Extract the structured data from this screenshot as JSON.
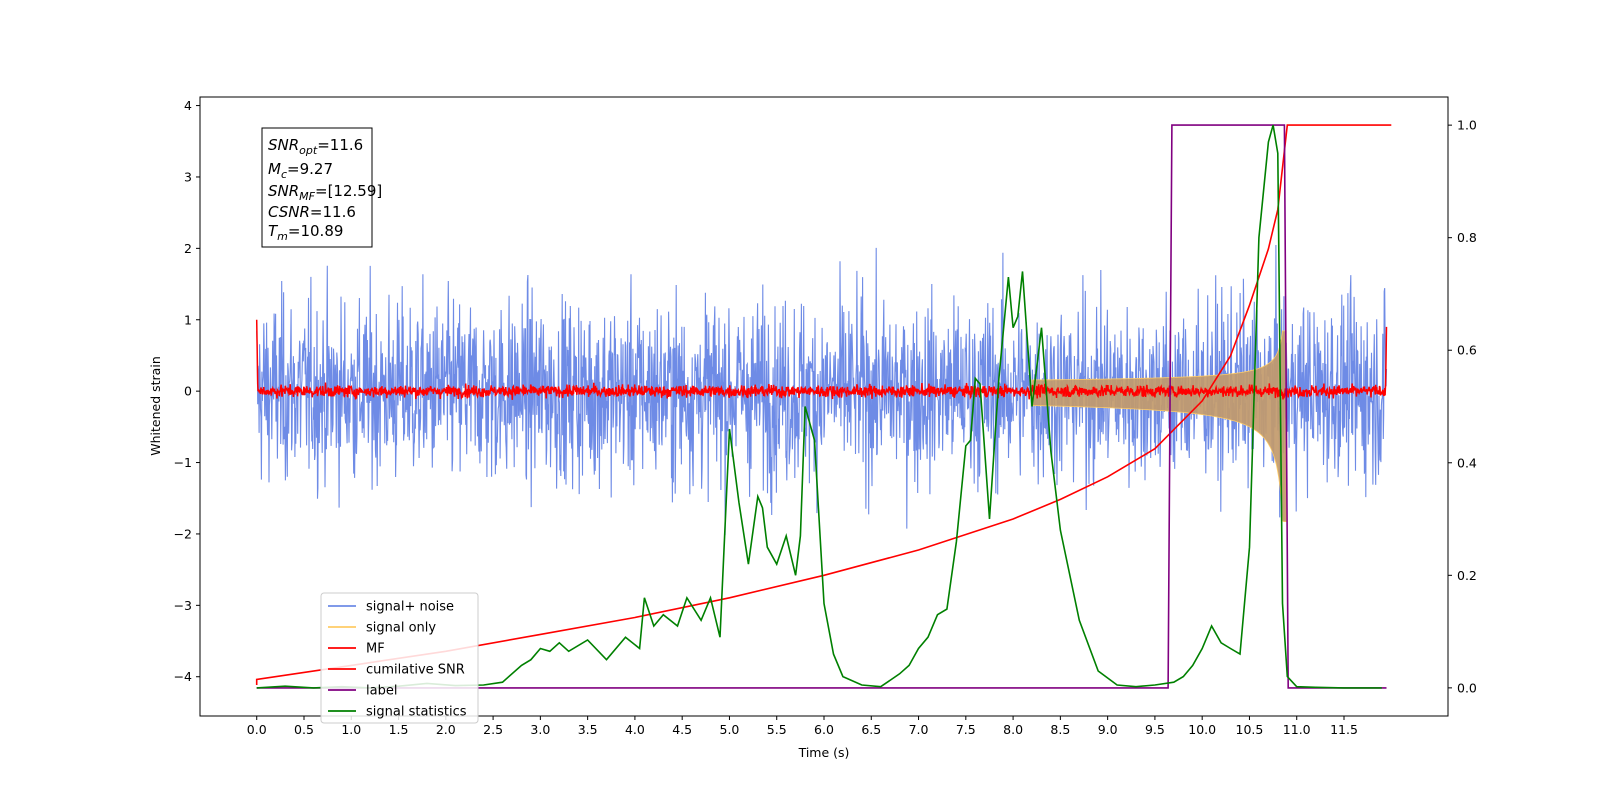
{
  "chart_data": {
    "type": "line",
    "xlabel": "Time (s)",
    "ylabel": "Whitened strain",
    "xlim": [
      -0.6,
      12.6
    ],
    "ylim": [
      -4.55,
      4.12
    ],
    "y2lim": [
      -0.05,
      1.05
    ],
    "x_ticks": [
      "0.0",
      "0.5",
      "1.0",
      "1.5",
      "2.0",
      "2.5",
      "3.0",
      "3.5",
      "4.0",
      "4.5",
      "5.0",
      "5.5",
      "6.0",
      "6.5",
      "7.0",
      "7.5",
      "8.0",
      "8.5",
      "9.0",
      "9.5",
      "10.0",
      "10.5",
      "11.0",
      "11.5"
    ],
    "y_ticks": [
      "4",
      "3",
      "2",
      "1",
      "0",
      "−1",
      "−2",
      "−3",
      "−4"
    ],
    "y2_ticks": [
      "1.0",
      "0.8",
      "0.6",
      "0.4",
      "0.2",
      "0.0"
    ],
    "legend_position": "lower-left",
    "annotation": {
      "snr_opt": "SNR",
      "snr_opt_sub": "opt",
      "snr_opt_val": "=11.6",
      "mc": "M",
      "mc_sub": "c",
      "mc_val": "=9.27",
      "snr_mf": "SNR",
      "snr_mf_sub": "MF",
      "snr_mf_val": "=[12.59]",
      "csnr": "CSNR",
      "csnr_val": "=11.6",
      "tm": "T",
      "tm_sub": "m",
      "tm_val": "=10.89"
    },
    "series": [
      {
        "name": "signal+ noise",
        "color": "#6e8be6",
        "axis": "left",
        "noise_amplitude_approx": 3.6
      },
      {
        "name": "signal only",
        "color": "#ffcc66",
        "axis": "left",
        "chirp_end_time": 10.89,
        "peak_amplitude": 1.35
      },
      {
        "name": "MF",
        "color": "#ff0000",
        "axis": "left",
        "noise_amplitude_approx": 0.2
      },
      {
        "name": "cumilative SNR",
        "color": "#ff0000",
        "axis": "right",
        "x": [
          0.0,
          1.0,
          2.0,
          3.0,
          4.0,
          5.0,
          6.0,
          7.0,
          8.0,
          8.5,
          9.0,
          9.5,
          10.0,
          10.3,
          10.5,
          10.7,
          10.8,
          10.9,
          12.0
        ],
        "values": [
          0.015,
          0.04,
          0.065,
          0.095,
          0.125,
          0.16,
          0.2,
          0.245,
          0.3,
          0.335,
          0.375,
          0.425,
          0.51,
          0.59,
          0.68,
          0.78,
          0.85,
          1.0,
          1.0
        ]
      },
      {
        "name": "label",
        "color": "#800080",
        "axis": "right",
        "x": [
          0.0,
          9.64,
          9.68,
          10.87,
          10.91,
          11.95
        ],
        "values": [
          0.0,
          0.0,
          1.0,
          1.0,
          0.0,
          0.0
        ]
      },
      {
        "name": "signal statistics",
        "color": "#008000",
        "axis": "right",
        "x": [
          0.0,
          0.3,
          0.6,
          0.9,
          1.2,
          1.5,
          1.8,
          2.1,
          2.4,
          2.6,
          2.8,
          2.9,
          3.0,
          3.1,
          3.2,
          3.3,
          3.5,
          3.7,
          3.9,
          4.05,
          4.1,
          4.2,
          4.3,
          4.45,
          4.55,
          4.7,
          4.8,
          4.9,
          5.0,
          5.1,
          5.2,
          5.3,
          5.35,
          5.4,
          5.5,
          5.6,
          5.7,
          5.75,
          5.8,
          5.9,
          6.0,
          6.1,
          6.2,
          6.4,
          6.6,
          6.8,
          6.9,
          7.0,
          7.1,
          7.2,
          7.3,
          7.4,
          7.5,
          7.55,
          7.6,
          7.65,
          7.75,
          7.85,
          7.95,
          8.0,
          8.05,
          8.1,
          8.2,
          8.3,
          8.4,
          8.5,
          8.7,
          8.9,
          9.1,
          9.3,
          9.5,
          9.7,
          9.8,
          9.9,
          10.0,
          10.1,
          10.2,
          10.3,
          10.4,
          10.5,
          10.6,
          10.7,
          10.75,
          10.8,
          10.85,
          10.9,
          11.0,
          11.2,
          11.5,
          11.9
        ],
        "values": [
          0.0,
          0.003,
          0.0,
          0.002,
          0.0,
          0.003,
          0.008,
          0.004,
          0.005,
          0.01,
          0.04,
          0.05,
          0.07,
          0.065,
          0.08,
          0.065,
          0.085,
          0.05,
          0.09,
          0.07,
          0.16,
          0.11,
          0.13,
          0.11,
          0.16,
          0.12,
          0.16,
          0.09,
          0.46,
          0.33,
          0.22,
          0.34,
          0.32,
          0.25,
          0.22,
          0.27,
          0.2,
          0.27,
          0.5,
          0.44,
          0.15,
          0.06,
          0.02,
          0.005,
          0.002,
          0.025,
          0.04,
          0.07,
          0.09,
          0.13,
          0.14,
          0.26,
          0.43,
          0.44,
          0.55,
          0.54,
          0.3,
          0.55,
          0.73,
          0.64,
          0.66,
          0.74,
          0.5,
          0.64,
          0.42,
          0.28,
          0.12,
          0.03,
          0.005,
          0.002,
          0.005,
          0.01,
          0.02,
          0.04,
          0.07,
          0.11,
          0.08,
          0.07,
          0.06,
          0.25,
          0.8,
          0.97,
          1.0,
          0.95,
          0.15,
          0.02,
          0.002,
          0.001,
          0.0,
          0.0
        ]
      }
    ]
  }
}
